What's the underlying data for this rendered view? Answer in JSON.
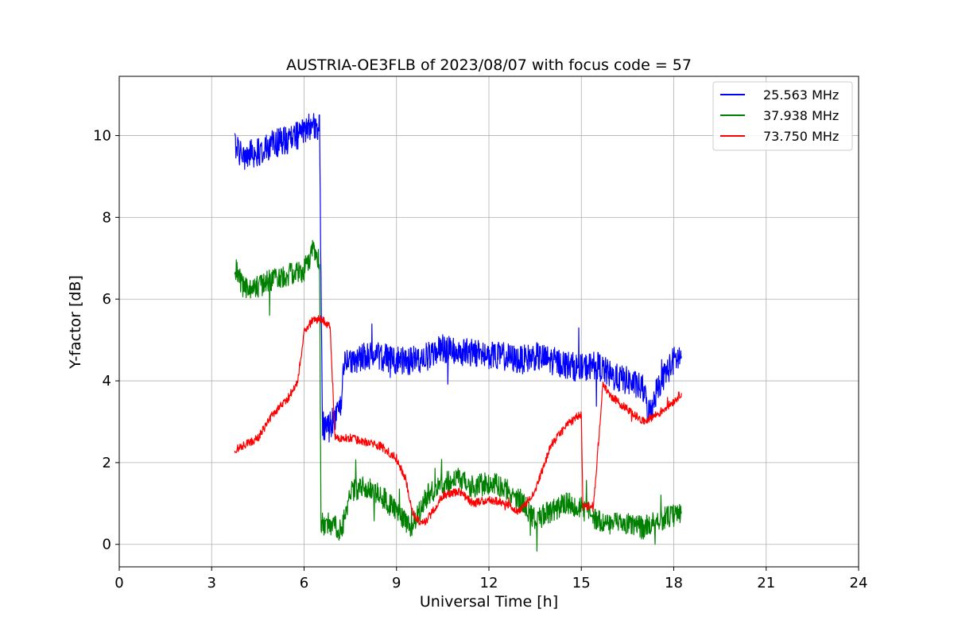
{
  "chart_data": {
    "type": "line",
    "title": "AUSTRIA-OE3FLB of 2023/08/07 with focus code = 57",
    "xlabel": "Universal Time [h]",
    "ylabel": "Y-factor [dB]",
    "xlim": [
      0,
      24
    ],
    "ylim": [
      -0.55,
      11.45
    ],
    "xticks": [
      0,
      3,
      6,
      9,
      12,
      15,
      18,
      21,
      24
    ],
    "xtick_labels": [
      "0",
      "3",
      "6",
      "9",
      "12",
      "15",
      "18",
      "21",
      "24"
    ],
    "yticks": [
      0,
      2,
      4,
      6,
      8,
      10
    ],
    "ytick_labels": [
      "0",
      "2",
      "4",
      "6",
      "8",
      "10"
    ],
    "grid": true,
    "legend_position": "top-right",
    "series": [
      {
        "name": "25.563 MHz",
        "color": "#0000ff",
        "noise": 0.35,
        "x": [
          3.75,
          4.0,
          4.5,
          5.0,
          5.5,
          6.0,
          6.3,
          6.5,
          6.6,
          6.8,
          7.0,
          7.2,
          7.3,
          7.5,
          8.0,
          8.5,
          9.0,
          9.5,
          10.0,
          10.5,
          11.0,
          11.5,
          12.0,
          12.5,
          13.0,
          13.5,
          14.0,
          14.5,
          15.0,
          15.5,
          16.0,
          16.5,
          17.0,
          17.2,
          17.5,
          18.0,
          18.25
        ],
        "y": [
          9.8,
          9.5,
          9.6,
          9.8,
          9.9,
          10.1,
          10.3,
          10.2,
          2.9,
          2.9,
          3.1,
          3.3,
          4.4,
          4.5,
          4.6,
          4.6,
          4.5,
          4.5,
          4.6,
          4.8,
          4.7,
          4.7,
          4.6,
          4.6,
          4.5,
          4.6,
          4.5,
          4.4,
          4.3,
          4.4,
          4.1,
          4.0,
          3.8,
          3.2,
          3.9,
          4.5,
          4.6
        ]
      },
      {
        "name": "37.938 MHz",
        "color": "#008000",
        "noise": 0.28,
        "x": [
          3.75,
          4.0,
          4.5,
          5.0,
          5.5,
          6.0,
          6.3,
          6.5,
          6.55,
          7.0,
          7.2,
          7.5,
          8.0,
          8.5,
          9.0,
          9.5,
          10.0,
          10.5,
          11.0,
          11.5,
          12.0,
          12.5,
          13.0,
          13.5,
          14.0,
          14.5,
          15.0,
          15.5,
          16.0,
          16.5,
          17.0,
          17.5,
          18.0,
          18.25
        ],
        "y": [
          6.8,
          6.3,
          6.3,
          6.5,
          6.6,
          6.7,
          7.2,
          6.9,
          0.5,
          0.5,
          0.3,
          1.3,
          1.4,
          1.2,
          0.8,
          0.4,
          1.2,
          1.5,
          1.6,
          1.4,
          1.5,
          1.4,
          1.1,
          0.6,
          0.8,
          1.0,
          0.9,
          0.6,
          0.5,
          0.5,
          0.4,
          0.6,
          0.7,
          0.8
        ]
      },
      {
        "name": "73.750 MHz",
        "color": "#ff0000",
        "noise": 0.1,
        "x": [
          3.75,
          4.0,
          4.5,
          5.0,
          5.5,
          5.8,
          6.0,
          6.3,
          6.6,
          6.85,
          7.0,
          7.5,
          8.0,
          8.5,
          9.0,
          9.3,
          9.5,
          9.8,
          10.0,
          10.5,
          11.0,
          11.5,
          12.0,
          12.5,
          13.0,
          13.5,
          14.0,
          14.5,
          15.0,
          15.05,
          15.4,
          15.7,
          16.0,
          16.5,
          17.0,
          17.5,
          18.0,
          18.25
        ],
        "y": [
          2.3,
          2.4,
          2.6,
          3.2,
          3.6,
          4.0,
          5.2,
          5.5,
          5.5,
          5.3,
          2.6,
          2.6,
          2.5,
          2.4,
          2.1,
          1.6,
          0.8,
          0.5,
          0.6,
          1.2,
          1.3,
          1.0,
          1.1,
          1.0,
          0.8,
          1.3,
          2.4,
          2.9,
          3.2,
          0.9,
          1.0,
          3.9,
          3.6,
          3.3,
          3.0,
          3.2,
          3.5,
          3.7
        ]
      }
    ]
  }
}
